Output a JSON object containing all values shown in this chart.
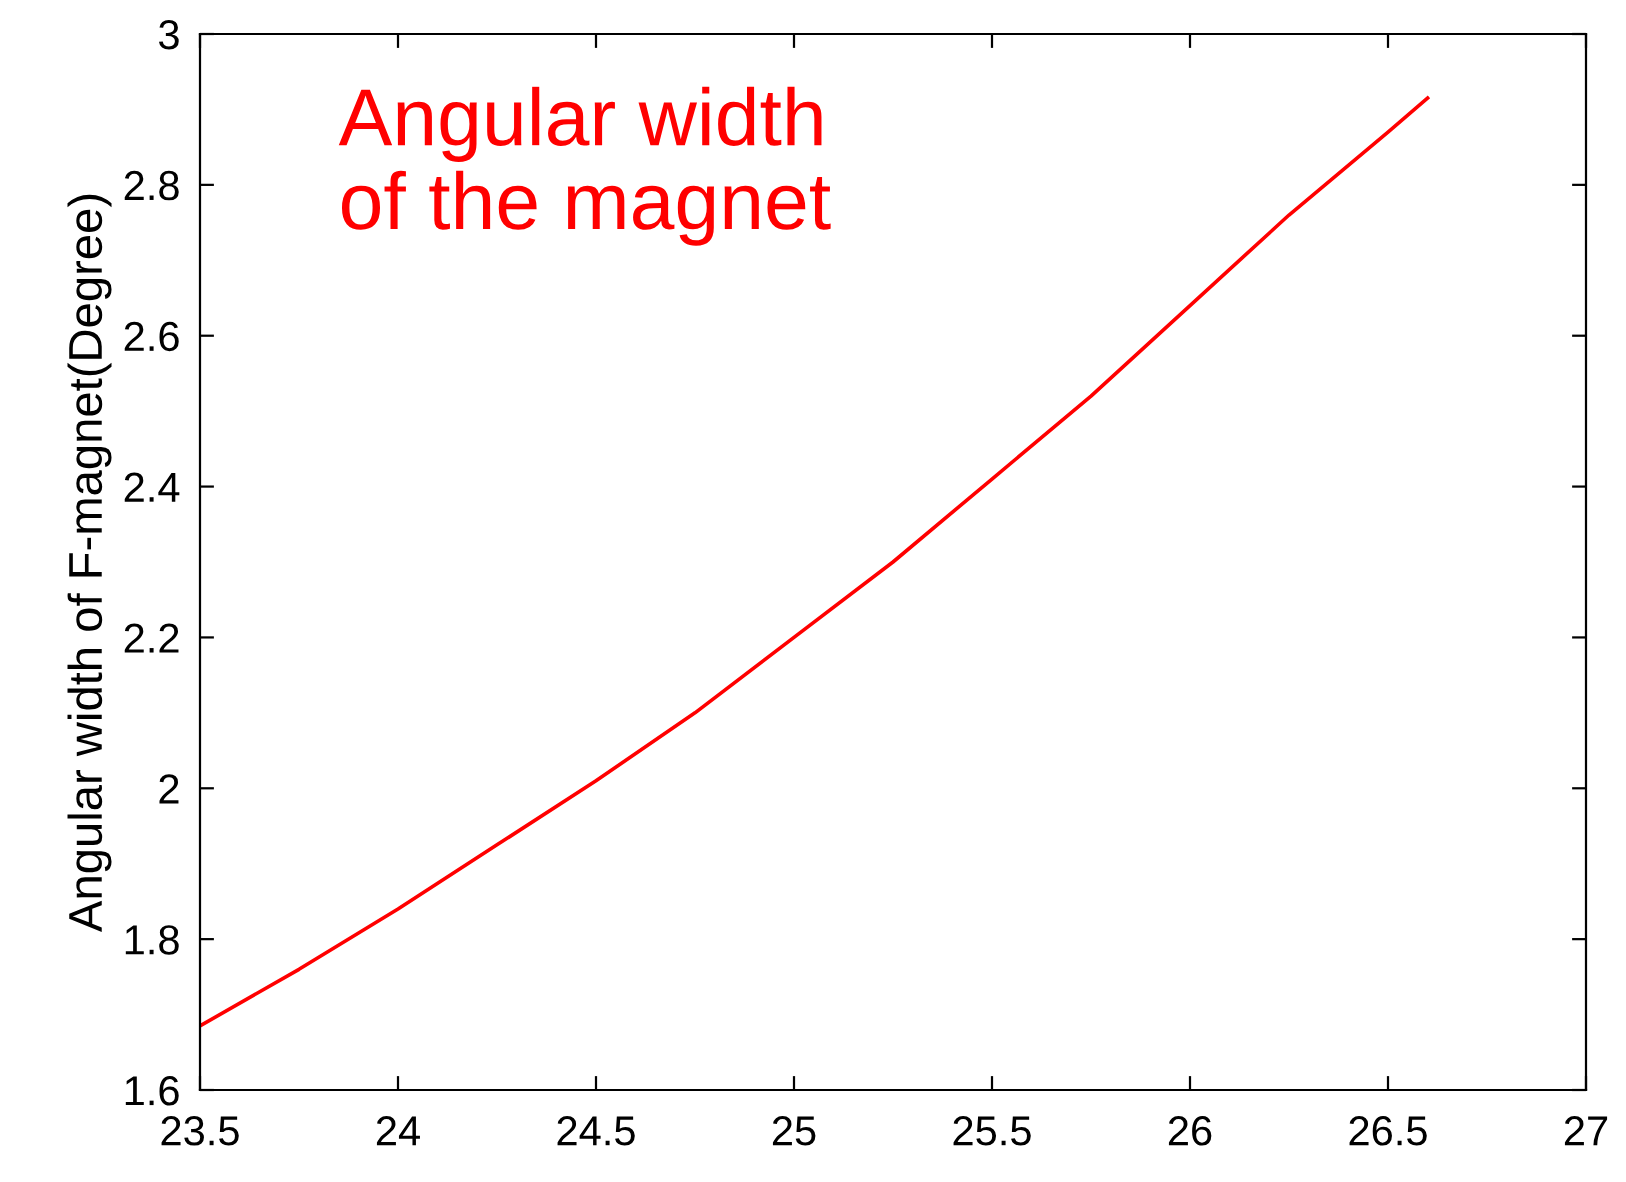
{
  "chart_data": {
    "type": "line",
    "ylabel": "Angular width of F-magnet(Degree)",
    "annotations": [
      "Angular width\nof the magnet"
    ],
    "series": [
      {
        "color": "#ff0000",
        "x": [
          23.5,
          23.75,
          24,
          24.25,
          24.5,
          24.75,
          25,
          25.25,
          25.5,
          25.75,
          26,
          26.25,
          26.5,
          26.6
        ],
        "values": [
          1.685,
          1.76,
          1.84,
          1.925,
          2.01,
          2.1,
          2.2,
          2.3,
          2.41,
          2.52,
          2.64,
          2.76,
          2.87,
          2.915
        ]
      }
    ],
    "xlim": [
      23.5,
      27
    ],
    "xticks": [
      23.5,
      24,
      24.5,
      25,
      25.5,
      26,
      26.5,
      27
    ],
    "ylim": [
      1.6,
      3
    ],
    "yticks": [
      1.6,
      1.8,
      2,
      2.2,
      2.4,
      2.6,
      2.8,
      3
    ],
    "grid": false
  }
}
